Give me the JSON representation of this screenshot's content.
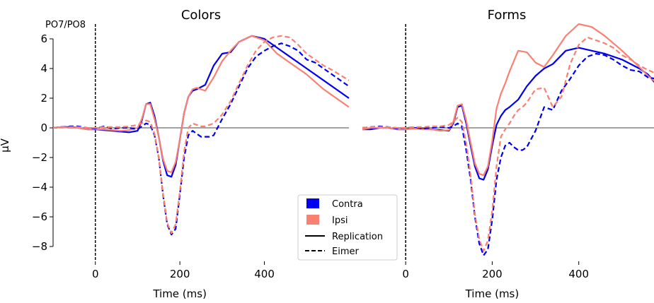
{
  "figure": {
    "ylabel": "μV",
    "channel_label": "PO7/PO8"
  },
  "legend": {
    "items": [
      {
        "label": "Contra",
        "kind": "patch",
        "color": "#0000ee"
      },
      {
        "label": "Ipsi",
        "kind": "patch",
        "color": "#fa8072"
      },
      {
        "label": "Replication",
        "kind": "line",
        "style": "solid",
        "color": "#000000"
      },
      {
        "label": "Eimer",
        "kind": "line",
        "style": "dashed",
        "color": "#000000"
      }
    ]
  },
  "chart_data": [
    {
      "type": "line",
      "title": "Colors",
      "xlabel": "Time (ms)",
      "ylabel": "μV",
      "xlim": [
        -100,
        600
      ],
      "ylim": [
        -9,
        7
      ],
      "xticks": [
        0,
        200,
        400
      ],
      "yticks": [
        -8,
        -6,
        -4,
        -2,
        0,
        2,
        4,
        6
      ],
      "series": [
        {
          "name": "Contra",
          "condition": "Replication",
          "color": "#0000ee",
          "dash": false,
          "x": [
            -100,
            -80,
            -60,
            -40,
            -20,
            0,
            20,
            40,
            60,
            80,
            100,
            110,
            120,
            130,
            140,
            150,
            160,
            170,
            180,
            190,
            200,
            210,
            220,
            230,
            240,
            260,
            280,
            300,
            320,
            340,
            370,
            400,
            430,
            460,
            500,
            540,
            560,
            600
          ],
          "y": [
            0,
            0.05,
            0.05,
            0,
            -0.1,
            -0.1,
            -0.15,
            -0.2,
            -0.25,
            -0.3,
            -0.2,
            0.5,
            1.6,
            1.7,
            0.8,
            -0.6,
            -2.2,
            -3.2,
            -3.3,
            -2.5,
            -0.8,
            1,
            2.1,
            2.5,
            2.6,
            2.9,
            4.2,
            5,
            5.1,
            5.8,
            6.2,
            6,
            5.4,
            4.8,
            4,
            3.2,
            2.8,
            2
          ]
        },
        {
          "name": "Ipsi",
          "condition": "Replication",
          "color": "#fa8072",
          "dash": false,
          "x": [
            -100,
            -80,
            -60,
            -40,
            -20,
            0,
            20,
            40,
            60,
            80,
            100,
            110,
            120,
            130,
            140,
            150,
            160,
            170,
            180,
            190,
            200,
            210,
            220,
            230,
            240,
            260,
            280,
            300,
            320,
            340,
            370,
            400,
            430,
            460,
            500,
            540,
            560,
            600
          ],
          "y": [
            0,
            0.05,
            0,
            0,
            -0.1,
            -0.1,
            -0.1,
            -0.15,
            -0.2,
            -0.15,
            0,
            0.6,
            1.6,
            1.6,
            0.6,
            -0.6,
            -2.1,
            -2.9,
            -3,
            -2.3,
            -0.8,
            1,
            2.1,
            2.6,
            2.7,
            2.5,
            3.4,
            4.5,
            5.2,
            5.8,
            6.2,
            5.9,
            5,
            4.4,
            3.6,
            2.6,
            2.2,
            1.4
          ]
        },
        {
          "name": "Contra",
          "condition": "Eimer",
          "color": "#0000ee",
          "dash": true,
          "x": [
            -100,
            -80,
            -60,
            -40,
            -20,
            0,
            20,
            40,
            60,
            80,
            100,
            110,
            120,
            130,
            140,
            150,
            160,
            170,
            180,
            190,
            200,
            210,
            220,
            230,
            240,
            250,
            260,
            270,
            280,
            300,
            320,
            340,
            360,
            380,
            400,
            420,
            440,
            460,
            480,
            500,
            520,
            540,
            560,
            600
          ],
          "y": [
            0,
            0.05,
            0.1,
            0.1,
            0,
            -0.05,
            0.1,
            -0.05,
            0,
            0,
            -0.1,
            0.1,
            0.3,
            0.2,
            -0.5,
            -2,
            -4.5,
            -6.5,
            -7.2,
            -6.8,
            -4.5,
            -2,
            -0.5,
            -0.2,
            -0.4,
            -0.6,
            -0.6,
            -0.6,
            -0.5,
            0.6,
            1.6,
            2.8,
            4,
            4.8,
            5.2,
            5.5,
            5.7,
            5.5,
            5.2,
            4.6,
            4.4,
            4,
            3.6,
            2.8
          ]
        },
        {
          "name": "Ipsi",
          "condition": "Eimer",
          "color": "#fa8072",
          "dash": true,
          "x": [
            -100,
            -80,
            -60,
            -40,
            -20,
            0,
            20,
            40,
            60,
            80,
            100,
            110,
            120,
            130,
            140,
            150,
            160,
            170,
            180,
            190,
            200,
            210,
            220,
            230,
            240,
            250,
            260,
            270,
            280,
            300,
            320,
            340,
            360,
            380,
            400,
            420,
            440,
            460,
            480,
            500,
            520,
            540,
            560,
            600
          ],
          "y": [
            0,
            0.05,
            0.05,
            0.05,
            0,
            0,
            0.05,
            0.05,
            0.05,
            0.1,
            0.2,
            0.3,
            0.5,
            0.4,
            -0.4,
            -2,
            -4.4,
            -6.4,
            -7.1,
            -6.5,
            -4.3,
            -1.6,
            0,
            0.3,
            0.2,
            0.1,
            0.1,
            0.2,
            0.3,
            0.9,
            1.8,
            3,
            4.2,
            5.2,
            5.8,
            6.1,
            6.2,
            6.1,
            5.6,
            5,
            4.6,
            4.2,
            3.9,
            3.2
          ]
        }
      ]
    },
    {
      "type": "line",
      "title": "Forms",
      "xlabel": "Time (ms)",
      "ylabel": "",
      "xlim": [
        -100,
        600
      ],
      "ylim": [
        -9,
        7
      ],
      "xticks": [
        0,
        200,
        400
      ],
      "yticks": [],
      "series": [
        {
          "name": "Contra",
          "condition": "Replication",
          "color": "#0000ee",
          "dash": false,
          "x": [
            -100,
            -80,
            -60,
            -40,
            -20,
            0,
            20,
            40,
            60,
            80,
            100,
            110,
            120,
            130,
            140,
            150,
            160,
            170,
            180,
            190,
            200,
            210,
            220,
            230,
            240,
            260,
            280,
            300,
            320,
            340,
            370,
            400,
            430,
            460,
            500,
            540,
            560,
            600
          ],
          "y": [
            -0.1,
            -0.1,
            0,
            0,
            -0.1,
            -0.1,
            0,
            -0.05,
            -0.1,
            -0.15,
            -0.2,
            0.3,
            1.4,
            1.5,
            0.3,
            -1.2,
            -2.6,
            -3.4,
            -3.5,
            -2.8,
            -1.2,
            0.2,
            0.8,
            1.2,
            1.4,
            1.9,
            2.8,
            3.5,
            4,
            4.3,
            5.2,
            5.4,
            5.2,
            5,
            4.6,
            4,
            3.6,
            2.2
          ]
        },
        {
          "name": "Ipsi",
          "condition": "Replication",
          "color": "#fa8072",
          "dash": false,
          "x": [
            -100,
            -80,
            -60,
            -40,
            -20,
            0,
            20,
            40,
            60,
            80,
            100,
            110,
            120,
            130,
            140,
            150,
            160,
            170,
            180,
            190,
            200,
            210,
            220,
            230,
            240,
            260,
            280,
            300,
            320,
            340,
            370,
            400,
            430,
            460,
            500,
            540,
            560,
            600
          ],
          "y": [
            -0.1,
            0,
            0,
            0,
            -0.1,
            -0.1,
            -0.05,
            -0.1,
            -0.1,
            -0.2,
            -0.15,
            0.4,
            1.5,
            1.6,
            0.5,
            -1,
            -2.4,
            -3.1,
            -3.2,
            -2.6,
            -0.9,
            1.3,
            2.3,
            3,
            3.8,
            5.2,
            5.1,
            4.4,
            4.1,
            4.9,
            6.2,
            7,
            6.8,
            6.2,
            5.2,
            4.1,
            3.5,
            2.6
          ]
        },
        {
          "name": "Contra",
          "condition": "Eimer",
          "color": "#0000ee",
          "dash": true,
          "x": [
            -100,
            -80,
            -60,
            -40,
            -20,
            0,
            20,
            40,
            60,
            80,
            100,
            110,
            120,
            130,
            140,
            150,
            160,
            170,
            180,
            190,
            200,
            210,
            220,
            230,
            240,
            250,
            260,
            270,
            280,
            300,
            320,
            340,
            360,
            380,
            400,
            420,
            440,
            460,
            480,
            500,
            520,
            540,
            560,
            600
          ],
          "y": [
            0,
            0.05,
            0.1,
            0.05,
            -0.05,
            0,
            0.05,
            -0.05,
            0,
            0.05,
            0,
            0.1,
            0.3,
            0.1,
            -1.5,
            -3.5,
            -6,
            -7.8,
            -8.6,
            -8.2,
            -6.2,
            -3.5,
            -2,
            -1.2,
            -1,
            -1.3,
            -1.5,
            -1.5,
            -1.3,
            -0.2,
            1.4,
            1.2,
            2.5,
            3.3,
            4.2,
            4.8,
            5,
            4.9,
            4.6,
            4.2,
            3.9,
            3.8,
            3.4,
            3.2
          ]
        },
        {
          "name": "Ipsi",
          "condition": "Eimer",
          "color": "#fa8072",
          "dash": true,
          "x": [
            -100,
            -80,
            -60,
            -40,
            -20,
            0,
            20,
            40,
            60,
            80,
            100,
            110,
            120,
            130,
            140,
            150,
            160,
            170,
            180,
            190,
            200,
            210,
            220,
            230,
            240,
            250,
            260,
            270,
            280,
            300,
            320,
            340,
            360,
            380,
            400,
            420,
            440,
            460,
            480,
            500,
            520,
            540,
            560,
            600
          ],
          "y": [
            0,
            0.05,
            0.05,
            0.05,
            0,
            0,
            0.05,
            0.05,
            0.1,
            0.1,
            0.2,
            0.4,
            0.7,
            0.4,
            -1,
            -3.2,
            -5.8,
            -7.5,
            -8.3,
            -7.6,
            -5.6,
            -2.6,
            -0.6,
            -0.1,
            0.3,
            0.8,
            1.2,
            1.4,
            1.7,
            2.6,
            2.7,
            1.4,
            2.1,
            4.3,
            5.6,
            6.1,
            5.9,
            5.7,
            5.4,
            4.9,
            4.6,
            4.2,
            3.9,
            3.4
          ]
        }
      ]
    }
  ]
}
